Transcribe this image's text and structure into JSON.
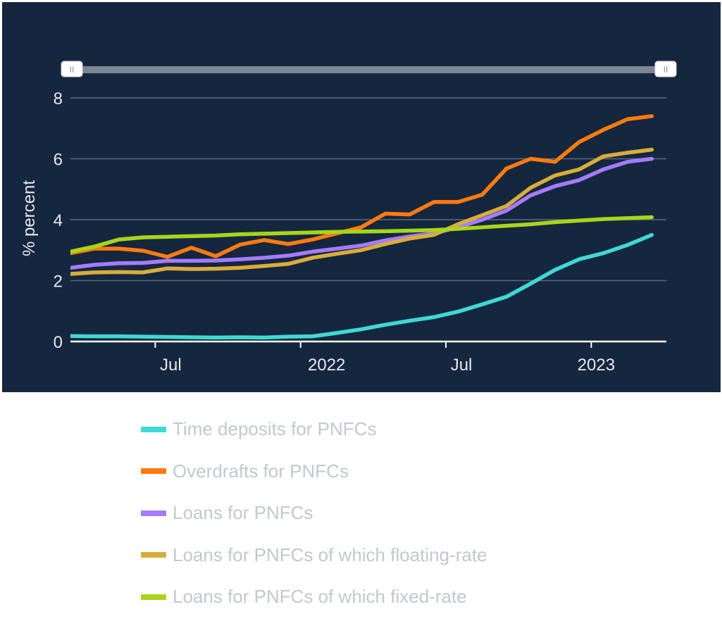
{
  "chart_data": {
    "type": "line",
    "title": "",
    "ylabel": "% percent",
    "ylim": [
      0,
      8
    ],
    "yticks": [
      "0",
      "2",
      "4",
      "6",
      "8"
    ],
    "xticks": [
      {
        "label": "Jul",
        "date": "2021-07"
      },
      {
        "label": "2022",
        "date": "2022-01"
      },
      {
        "label": "Jul",
        "date": "2022-07"
      },
      {
        "label": "2023",
        "date": "2023-01"
      }
    ],
    "x": [
      "2021-03",
      "2021-04",
      "2021-05",
      "2021-06",
      "2021-07",
      "2021-08",
      "2021-09",
      "2021-10",
      "2021-11",
      "2021-12",
      "2022-01",
      "2022-02",
      "2022-03",
      "2022-04",
      "2022-05",
      "2022-06",
      "2022-07",
      "2022-08",
      "2022-09",
      "2022-10",
      "2022-11",
      "2022-12",
      "2023-01",
      "2023-02",
      "2023-03"
    ],
    "series": [
      {
        "name": "Time deposits for PNFCs",
        "color": "#3ed9d4",
        "values": [
          0.18,
          0.17,
          0.17,
          0.16,
          0.15,
          0.14,
          0.13,
          0.14,
          0.13,
          0.16,
          0.17,
          0.28,
          0.4,
          0.55,
          0.68,
          0.8,
          0.98,
          1.22,
          1.47,
          1.9,
          2.35,
          2.7,
          2.9,
          3.17,
          3.5
        ]
      },
      {
        "name": "Overdrafts for PNFCs",
        "color": "#ff7a0f",
        "values": [
          2.9,
          3.05,
          3.05,
          2.98,
          2.78,
          3.08,
          2.8,
          3.18,
          3.33,
          3.2,
          3.35,
          3.55,
          3.75,
          4.2,
          4.17,
          4.58,
          4.58,
          4.82,
          5.68,
          6.0,
          5.9,
          6.55,
          6.95,
          7.3,
          7.4
        ]
      },
      {
        "name": "Loans for PNFCs",
        "color": "#a37cff",
        "values": [
          2.42,
          2.52,
          2.57,
          2.58,
          2.65,
          2.65,
          2.66,
          2.7,
          2.75,
          2.82,
          2.95,
          3.05,
          3.15,
          3.32,
          3.45,
          3.55,
          3.75,
          4.0,
          4.3,
          4.8,
          5.1,
          5.3,
          5.65,
          5.9,
          6.0
        ]
      },
      {
        "name": "Loans for PNFCs of which floating-rate",
        "color": "#d9ad3a",
        "values": [
          2.22,
          2.27,
          2.28,
          2.27,
          2.4,
          2.38,
          2.39,
          2.42,
          2.48,
          2.55,
          2.75,
          2.88,
          3.0,
          3.2,
          3.38,
          3.5,
          3.85,
          4.15,
          4.45,
          5.05,
          5.45,
          5.65,
          6.08,
          6.2,
          6.3
        ]
      },
      {
        "name": "Loans for PNFCs of which fixed-rate",
        "color": "#a6d619",
        "values": [
          2.95,
          3.12,
          3.35,
          3.42,
          3.44,
          3.46,
          3.48,
          3.52,
          3.54,
          3.56,
          3.58,
          3.6,
          3.61,
          3.62,
          3.64,
          3.66,
          3.7,
          3.75,
          3.8,
          3.85,
          3.92,
          3.97,
          4.02,
          4.05,
          4.08
        ]
      }
    ],
    "legend": "bottom",
    "grid": true
  },
  "range_slider": {
    "handle_left_label": "II",
    "handle_right_label": "II"
  },
  "style": {
    "panel_background": "#15263f",
    "gridline_color": "#5b6b84",
    "slider_track_color": "#7c8591",
    "legend_text_color": "#c3c7cf"
  }
}
